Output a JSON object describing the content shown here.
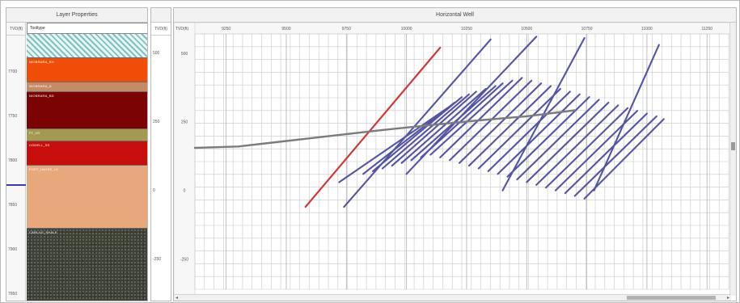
{
  "left_panel": {
    "title": "Layer Properties",
    "depth_header": "TVD(ft)",
    "depth_ticks": [
      "7700",
      "7750",
      "7800",
      "7850",
      "7900",
      "7950"
    ],
    "header_cell": "Tooltype",
    "layers": [
      {
        "label": "",
        "color": "#bfe0de",
        "pattern": "teal",
        "frac": 0.09
      },
      {
        "label": "NIOBRARA_BH",
        "color": "#f04d08",
        "pattern": "",
        "frac": 0.09
      },
      {
        "label": "NIOBRARA_A",
        "color": "#c58a66",
        "pattern": "",
        "frac": 0.035
      },
      {
        "label": "NIOBRARA_BD",
        "color": "#7c0303",
        "pattern": "",
        "frac": 0.14
      },
      {
        "label": "FT_HY",
        "color": "#a39a52",
        "pattern": "",
        "frac": 0.045
      },
      {
        "label": "CODELL_SS",
        "color": "#c80d0d",
        "pattern": "",
        "frac": 0.09
      },
      {
        "label": "FORT_HAYES_LS",
        "color": "#e8a87c",
        "pattern": "",
        "frac": 0.235
      },
      {
        "label": "CARLILE_SHALE",
        "color": "#3f4339",
        "pattern": "rock",
        "frac": 0.275
      }
    ]
  },
  "mid_panel": {
    "header": "TVD(ft)",
    "ticks": [
      "500",
      "250",
      "0",
      "-250"
    ]
  },
  "chart": {
    "title": "Horizontal Well",
    "x_header": "TVD(ft)",
    "colors": {
      "well": "#7b7b7b",
      "red_fracture": "#d03838",
      "blue_fracture": "#5454a6",
      "grid": "#c8c8c8"
    }
  },
  "chart_data": {
    "type": "line",
    "title": "Horizontal Well",
    "xlabel": "",
    "ylabel": "",
    "x_ticks": [
      9250,
      9500,
      9750,
      10000,
      10250,
      10500,
      10750,
      11000,
      11250
    ],
    "y_ticks": [
      500,
      250,
      0,
      -250
    ],
    "xlim": [
      9120,
      11340
    ],
    "ylim": [
      -360,
      570
    ],
    "grid": true,
    "series": [
      {
        "role": "well",
        "points": [
          [
            9120,
            155
          ],
          [
            9300,
            160
          ],
          [
            9500,
            180
          ],
          [
            9700,
            200
          ],
          [
            9900,
            220
          ],
          [
            10100,
            238
          ],
          [
            10300,
            255
          ],
          [
            10500,
            270
          ],
          [
            10700,
            292
          ]
        ]
      }
    ],
    "fractures_red": [
      {
        "x1": 9580,
        "y1": -60,
        "x2": 10140,
        "y2": 520
      }
    ],
    "fractures_blue": [
      {
        "x1": 9720,
        "y1": 30,
        "x2": 10170,
        "y2": 300
      },
      {
        "x1": 9740,
        "y1": -60,
        "x2": 10350,
        "y2": 550
      },
      {
        "x1": 9820,
        "y1": 60,
        "x2": 10200,
        "y2": 320
      },
      {
        "x1": 9860,
        "y1": 70,
        "x2": 10230,
        "y2": 340
      },
      {
        "x1": 9900,
        "y1": 80,
        "x2": 10260,
        "y2": 350
      },
      {
        "x1": 9940,
        "y1": 90,
        "x2": 10290,
        "y2": 360
      },
      {
        "x1": 9980,
        "y1": 100,
        "x2": 10330,
        "y2": 370
      },
      {
        "x1": 10020,
        "y1": 110,
        "x2": 10370,
        "y2": 380
      },
      {
        "x1": 10060,
        "y1": 120,
        "x2": 10400,
        "y2": 390
      },
      {
        "x1": 10100,
        "y1": 130,
        "x2": 10440,
        "y2": 400
      },
      {
        "x1": 10000,
        "y1": 60,
        "x2": 10540,
        "y2": 560
      },
      {
        "x1": 10140,
        "y1": 120,
        "x2": 10480,
        "y2": 410
      },
      {
        "x1": 10180,
        "y1": 110,
        "x2": 10520,
        "y2": 400
      },
      {
        "x1": 10220,
        "y1": 100,
        "x2": 10560,
        "y2": 390
      },
      {
        "x1": 10260,
        "y1": 90,
        "x2": 10600,
        "y2": 380
      },
      {
        "x1": 10300,
        "y1": 80,
        "x2": 10640,
        "y2": 370
      },
      {
        "x1": 10340,
        "y1": 70,
        "x2": 10680,
        "y2": 360
      },
      {
        "x1": 10380,
        "y1": 60,
        "x2": 10720,
        "y2": 350
      },
      {
        "x1": 10420,
        "y1": 50,
        "x2": 10760,
        "y2": 340
      },
      {
        "x1": 10400,
        "y1": 0,
        "x2": 10740,
        "y2": 555
      },
      {
        "x1": 10460,
        "y1": 40,
        "x2": 10800,
        "y2": 330
      },
      {
        "x1": 10500,
        "y1": 30,
        "x2": 10840,
        "y2": 320
      },
      {
        "x1": 10540,
        "y1": 20,
        "x2": 10880,
        "y2": 310
      },
      {
        "x1": 10580,
        "y1": 10,
        "x2": 10920,
        "y2": 300
      },
      {
        "x1": 10620,
        "y1": 0,
        "x2": 10960,
        "y2": 290
      },
      {
        "x1": 10660,
        "y1": -10,
        "x2": 11000,
        "y2": 280
      },
      {
        "x1": 10700,
        "y1": -20,
        "x2": 11040,
        "y2": 270
      },
      {
        "x1": 10740,
        "y1": -30,
        "x2": 11070,
        "y2": 260
      },
      {
        "x1": 10780,
        "y1": 0,
        "x2": 11050,
        "y2": 530
      }
    ]
  }
}
